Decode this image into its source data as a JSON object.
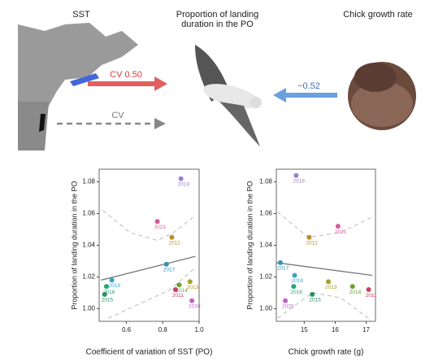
{
  "diagram": {
    "sst_label": "SST",
    "center_label": "Proportion of landing duration in the PO",
    "chick_label": "Chick growth rate",
    "red_arrow_label": "CV  0.50",
    "gray_arrow_label": "CV",
    "blue_arrow_label": "−0.52"
  },
  "chart_data": [
    {
      "type": "scatter",
      "y_label": "Proportion of landing duration in the PO",
      "x_label": "Coefficient of variation of SST (PO)",
      "labels": [
        "2019",
        "2021",
        "2012",
        "2017",
        "2018",
        "2016",
        "2015",
        "2014",
        "2013",
        "2011",
        "2020"
      ],
      "colors": [
        "#9b7fd4",
        "#d65a9e",
        "#b8902e",
        "#3a8fb8",
        "#3aa3c8",
        "#2aa07a",
        "#2a8f60",
        "#6aa032",
        "#a8a022",
        "#c84062",
        "#c062c8"
      ],
      "x": [
        0.9,
        0.77,
        0.85,
        0.82,
        0.52,
        0.49,
        0.48,
        0.89,
        0.95,
        0.87,
        0.96
      ],
      "y": [
        1.082,
        1.055,
        1.045,
        1.028,
        1.018,
        1.014,
        1.009,
        1.015,
        1.017,
        1.012,
        1.005
      ],
      "fit": {
        "x": [
          0.46,
          0.98
        ],
        "y": [
          1.018,
          1.033
        ]
      },
      "ci_upper": {
        "x": [
          0.47,
          0.62,
          0.77,
          0.86,
          0.97
        ],
        "y": [
          1.062,
          1.048,
          1.043,
          1.048,
          1.058
        ]
      },
      "ci_lower": {
        "x": [
          0.5,
          0.71,
          0.84,
          0.97
        ],
        "y": [
          0.994,
          1.005,
          1.012,
          1.025
        ]
      },
      "xlim": [
        0.45,
        1.0
      ],
      "ylim": [
        0.992,
        1.088
      ],
      "xticks": [
        0.6,
        0.8,
        {
          "value": 1,
          "label": "1.0"
        }
      ],
      "yticks": [
        {
          "value": 1,
          "label": "1.00"
        },
        {
          "value": 1.02,
          "label": "1.02"
        },
        {
          "value": 1.04,
          "label": "1.04"
        },
        {
          "value": 1.06,
          "label": "1.06"
        },
        {
          "value": 1.08,
          "label": "1.08"
        }
      ]
    },
    {
      "type": "scatter",
      "y_label": "Proportion of landing duration in the PO",
      "x_label": "Chick growth rate (g)",
      "labels": [
        "2019",
        "2021",
        "2012",
        "2017",
        "2018",
        "2016",
        "2015",
        "2014",
        "2013",
        "2011",
        "2020"
      ],
      "colors": [
        "#9b7fd4",
        "#d65a9e",
        "#b8902e",
        "#3a8fb8",
        "#3aa3c8",
        "#2aa07a",
        "#2a8f60",
        "#6aa032",
        "#a8a022",
        "#c84062",
        "#c062c8"
      ],
      "x": [
        14.74,
        16.09,
        15.16,
        14.23,
        14.69,
        14.66,
        15.26,
        16.56,
        15.78,
        17.08,
        14.39
      ],
      "y": [
        1.084,
        1.052,
        1.045,
        1.029,
        1.021,
        1.014,
        1.009,
        1.014,
        1.017,
        1.012,
        1.005
      ],
      "fit": {
        "x": [
          14.1,
          17.2
        ],
        "y": [
          1.029,
          1.021
        ]
      },
      "ci_upper": {
        "x": [
          14.14,
          15.13,
          16.17,
          17.21
        ],
        "y": [
          1.061,
          1.045,
          1.048,
          1.058
        ]
      },
      "ci_lower": {
        "x": [
          14.14,
          15.26,
          16.17,
          17.21
        ],
        "y": [
          0.994,
          1.01,
          1.007,
          0.992
        ]
      },
      "xlim": [
        14.1,
        17.3
      ],
      "ylim": [
        0.992,
        1.088
      ],
      "xticks": [
        15,
        16,
        17
      ],
      "yticks": [
        {
          "value": 1,
          "label": "1.00"
        },
        {
          "value": 1.02,
          "label": "1.02"
        },
        {
          "value": 1.04,
          "label": "1.04"
        },
        {
          "value": 1.06,
          "label": "1.06"
        },
        {
          "value": 1.08,
          "label": "1.08"
        }
      ]
    }
  ]
}
